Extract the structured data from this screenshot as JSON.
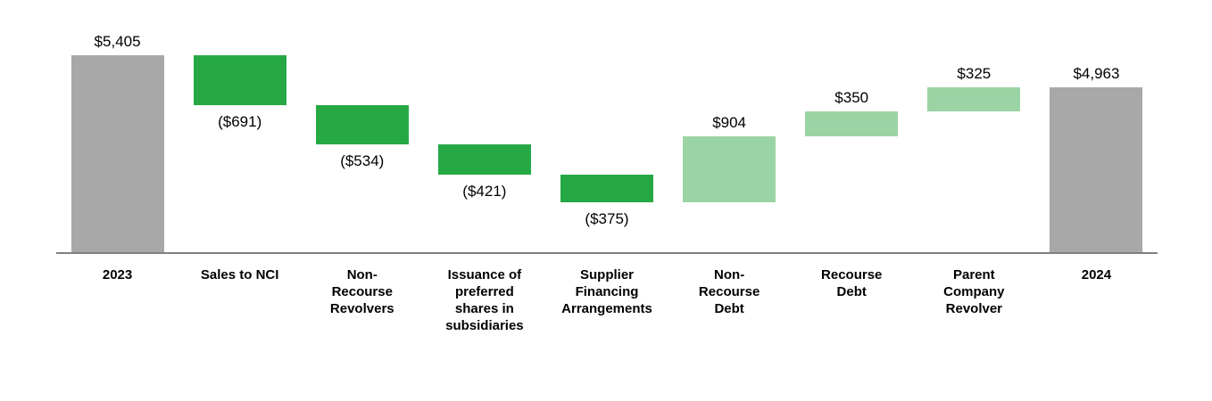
{
  "chart_data": {
    "type": "waterfall",
    "title": "",
    "description": "Waterfall bridge from 2023 to 2024 totals",
    "ylim": [
      2700,
      5405
    ],
    "grid": false,
    "legend": false,
    "colors": {
      "total": "#A8A8A8",
      "decrease": "#26A944",
      "increase": "#9BD4A4",
      "axis_line": "#808080",
      "value_text": "#000000",
      "category_text": "#000000",
      "background": "#FFFFFF"
    },
    "columns": [
      {
        "label": "2023",
        "label_lines": [
          "2023"
        ],
        "kind": "total",
        "value": 5405,
        "display": "$5,405",
        "value_label_position": "above"
      },
      {
        "label": "Sales to NCI",
        "label_lines": [
          "Sales to NCI"
        ],
        "kind": "decrease",
        "value": -691,
        "display": "($691)",
        "value_label_position": "below"
      },
      {
        "label": "Non-Recourse Revolvers",
        "label_lines": [
          "Non-",
          "Recourse",
          "Revolvers"
        ],
        "kind": "decrease",
        "value": -534,
        "display": "($534)",
        "value_label_position": "below"
      },
      {
        "label": "Issuance of preferred shares in subsidiaries",
        "label_lines": [
          "Issuance of",
          "preferred",
          "shares in",
          "subsidiaries"
        ],
        "kind": "decrease",
        "value": -421,
        "display": "($421)",
        "value_label_position": "below"
      },
      {
        "label": "Supplier Financing Arrangements",
        "label_lines": [
          "Supplier",
          "Financing",
          "Arrangements"
        ],
        "kind": "decrease",
        "value": -375,
        "display": "($375)",
        "value_label_position": "below"
      },
      {
        "label": "Non-Recourse Debt",
        "label_lines": [
          "Non-",
          "Recourse",
          "Debt"
        ],
        "kind": "increase",
        "value": 904,
        "display": "$904",
        "value_label_position": "above"
      },
      {
        "label": "Recourse Debt",
        "label_lines": [
          "Recourse",
          "Debt"
        ],
        "kind": "increase",
        "value": 350,
        "display": "$350",
        "value_label_position": "above"
      },
      {
        "label": "Parent Company Revolver",
        "label_lines": [
          "Parent",
          "Company",
          "Revolver"
        ],
        "kind": "increase",
        "value": 325,
        "display": "$325",
        "value_label_position": "above"
      },
      {
        "label": "2024",
        "label_lines": [
          "2024"
        ],
        "kind": "total",
        "value": 4963,
        "display": "$4,963",
        "value_label_position": "above"
      }
    ]
  }
}
